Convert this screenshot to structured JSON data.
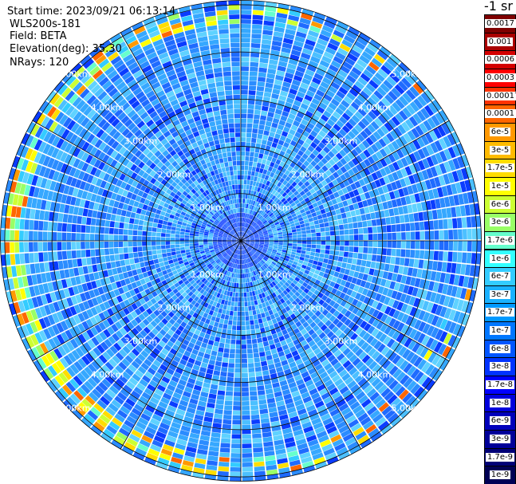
{
  "header": {
    "start_time": "Start time: 2023/09/21 06:13:14",
    "instrument": "WLS200s-181",
    "field": "Field: BETA",
    "elevation": "Elevation(deg): 35.30",
    "nrays": "NRays: 120"
  },
  "colorbar": {
    "unit": "-1 sr",
    "labels": [
      "0.0017",
      "0.001",
      "0.0006",
      "0.0003",
      "0.00017",
      "0.0001",
      "6e-5",
      "3e-5",
      "1.7e-5",
      "1e-5",
      "6e-6",
      "3e-6",
      "1.7e-6",
      "1e-6",
      "6e-7",
      "3e-7",
      "1.7e-7",
      "1e-7",
      "6e-8",
      "3e-8",
      "1.7e-8",
      "1e-8",
      "6e-9",
      "3e-9",
      "1.7e-9",
      "1e-9"
    ],
    "colors": [
      "#7f0000",
      "#aa0000",
      "#d40000",
      "#ff0000",
      "#ff3300",
      "#ff6600",
      "#ff9900",
      "#ffbb00",
      "#ffdd00",
      "#ffff00",
      "#ccff33",
      "#99ff66",
      "#66ffcc",
      "#33ffff",
      "#33ccff",
      "#1ab2ff",
      "#0099ff",
      "#0077ff",
      "#0055ff",
      "#0033ff",
      "#0000ff",
      "#0000dd",
      "#0000bb",
      "#000099",
      "#000077",
      "#000055"
    ]
  },
  "chart_data": {
    "type": "heatmap",
    "subtype": "polar PPI",
    "field": "BETA",
    "elevation_deg": 35.3,
    "n_rays": 120,
    "range_rings_km": [
      1,
      2,
      3,
      4,
      5
    ],
    "range_ring_labels": [
      "1.00km",
      "2.00km",
      "3.00km",
      "4.00km",
      "5.00km"
    ],
    "max_range_km": 5.1,
    "dominant_value_range": [
      "1e-7",
      "3e-7"
    ],
    "outer_band_km": [
      4.6,
      5.0
    ],
    "outer_band_value_range": [
      "1e-6",
      "1.7e-5"
    ]
  }
}
